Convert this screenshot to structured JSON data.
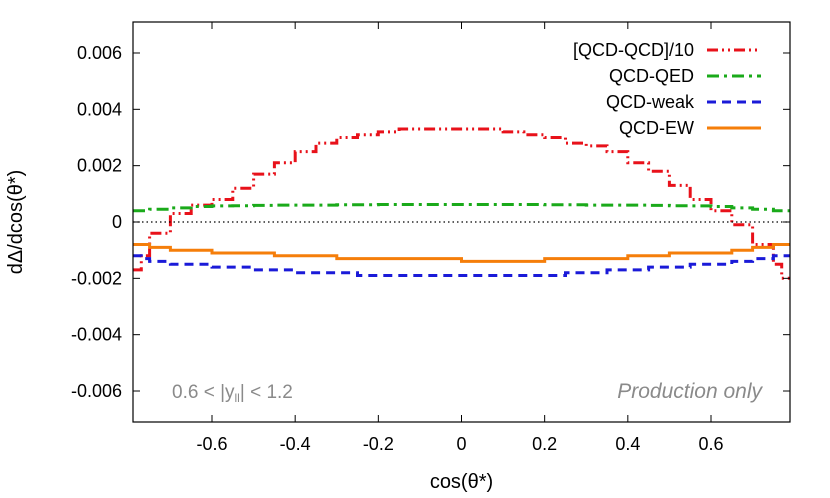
{
  "chart_data": {
    "type": "line",
    "step": true,
    "xlabel": "cos(θ*)",
    "ylabel": "dΔ/dcos(θ*)",
    "xlim": [
      -0.79,
      0.79
    ],
    "ylim": [
      -0.0071,
      0.0071
    ],
    "xticks": [
      -0.6,
      -0.4,
      -0.2,
      0,
      0.2,
      0.4,
      0.6
    ],
    "xtick_labels": [
      "-0.6",
      "-0.4",
      "-0.2",
      "0",
      "0.2",
      "0.4",
      "0.6"
    ],
    "yticks": [
      0.006,
      0.004,
      0.002,
      0,
      -0.002,
      -0.004,
      -0.006
    ],
    "ytick_labels": [
      "0.006",
      "0.004",
      "0.002",
      "0",
      "-0.002",
      "-0.004",
      "-0.006"
    ],
    "zero_line": true,
    "grid": false,
    "legend_position": "top-right",
    "annotations": {
      "left": {
        "parts": [
          "0.6 < |y",
          "ll",
          "| < 1.2"
        ]
      },
      "right": "Production only"
    },
    "series": [
      {
        "name": "[QCD-QCD]/10",
        "color": "#e8111a",
        "dash": "dash-dot-dot",
        "edges": [
          -0.79,
          -0.77,
          -0.75,
          -0.7,
          -0.65,
          -0.6,
          -0.55,
          -0.5,
          -0.45,
          -0.4,
          -0.35,
          -0.3,
          -0.25,
          -0.2,
          -0.15,
          -0.1,
          -0.05,
          0,
          0.05,
          0.1,
          0.15,
          0.2,
          0.25,
          0.3,
          0.35,
          0.4,
          0.45,
          0.5,
          0.55,
          0.6,
          0.65,
          0.7,
          0.75,
          0.77,
          0.79
        ],
        "values": [
          -0.0017,
          -0.0012,
          -0.0004,
          0.0003,
          0.0006,
          0.0008,
          0.0012,
          0.0017,
          0.0021,
          0.0025,
          0.0028,
          0.003,
          0.0031,
          0.0032,
          0.0033,
          0.0033,
          0.0033,
          0.0033,
          0.0033,
          0.0032,
          0.0031,
          0.003,
          0.0028,
          0.0027,
          0.0025,
          0.0021,
          0.0018,
          0.0013,
          0.0008,
          0.0004,
          -0.0001,
          -0.0008,
          -0.0015,
          -0.002
        ]
      },
      {
        "name": "QCD-QED",
        "color": "#1aaa1a",
        "dash": "dash-dot",
        "edges": [
          -0.79,
          -0.75,
          -0.7,
          -0.65,
          -0.6,
          -0.55,
          -0.5,
          -0.45,
          -0.4,
          -0.35,
          -0.3,
          -0.25,
          -0.2,
          -0.15,
          -0.1,
          -0.05,
          0,
          0.05,
          0.1,
          0.15,
          0.2,
          0.25,
          0.3,
          0.35,
          0.4,
          0.45,
          0.5,
          0.55,
          0.6,
          0.65,
          0.7,
          0.75,
          0.79
        ],
        "values": [
          0.0004,
          0.00045,
          0.0005,
          0.00055,
          0.00057,
          0.00058,
          0.00059,
          0.0006,
          0.0006,
          0.0006,
          0.00061,
          0.00061,
          0.00062,
          0.00062,
          0.00062,
          0.00062,
          0.00062,
          0.00062,
          0.00062,
          0.00062,
          0.00061,
          0.00061,
          0.0006,
          0.0006,
          0.0006,
          0.00059,
          0.00058,
          0.00057,
          0.00055,
          0.0005,
          0.00045,
          0.0004
        ]
      },
      {
        "name": "QCD-weak",
        "color": "#1a1ad8",
        "dash": "dash",
        "edges": [
          -0.79,
          -0.77,
          -0.75,
          -0.7,
          -0.65,
          -0.6,
          -0.55,
          -0.5,
          -0.45,
          -0.4,
          -0.35,
          -0.3,
          -0.25,
          -0.2,
          -0.15,
          -0.1,
          -0.05,
          0,
          0.05,
          0.1,
          0.15,
          0.2,
          0.25,
          0.3,
          0.35,
          0.4,
          0.45,
          0.5,
          0.55,
          0.6,
          0.65,
          0.7,
          0.75,
          0.77,
          0.79
        ],
        "values": [
          -0.0012,
          -0.0013,
          -0.0014,
          -0.0015,
          -0.0015,
          -0.0016,
          -0.0016,
          -0.0017,
          -0.0017,
          -0.0018,
          -0.0018,
          -0.0018,
          -0.0019,
          -0.0019,
          -0.0019,
          -0.0019,
          -0.0019,
          -0.0019,
          -0.0019,
          -0.0019,
          -0.0019,
          -0.0019,
          -0.0018,
          -0.0018,
          -0.0017,
          -0.0017,
          -0.0016,
          -0.0016,
          -0.0015,
          -0.0015,
          -0.0014,
          -0.0013,
          -0.0012,
          -0.0012
        ]
      },
      {
        "name": "QCD-EW",
        "color": "#f57e0a",
        "dash": "solid",
        "edges": [
          -0.79,
          -0.75,
          -0.7,
          -0.65,
          -0.6,
          -0.55,
          -0.5,
          -0.45,
          -0.4,
          -0.35,
          -0.3,
          -0.25,
          -0.2,
          -0.15,
          -0.1,
          -0.05,
          0,
          0.05,
          0.1,
          0.15,
          0.2,
          0.25,
          0.3,
          0.35,
          0.4,
          0.45,
          0.5,
          0.55,
          0.6,
          0.65,
          0.7,
          0.75,
          0.79
        ],
        "values": [
          -0.0008,
          -0.0009,
          -0.001,
          -0.001,
          -0.0011,
          -0.0011,
          -0.0011,
          -0.0012,
          -0.0012,
          -0.0012,
          -0.0013,
          -0.0013,
          -0.0013,
          -0.0013,
          -0.0013,
          -0.0013,
          -0.0014,
          -0.0014,
          -0.0014,
          -0.0014,
          -0.0013,
          -0.0013,
          -0.0013,
          -0.0013,
          -0.0012,
          -0.0012,
          -0.0011,
          -0.0011,
          -0.0011,
          -0.001,
          -0.0009,
          -0.0008
        ]
      }
    ]
  }
}
